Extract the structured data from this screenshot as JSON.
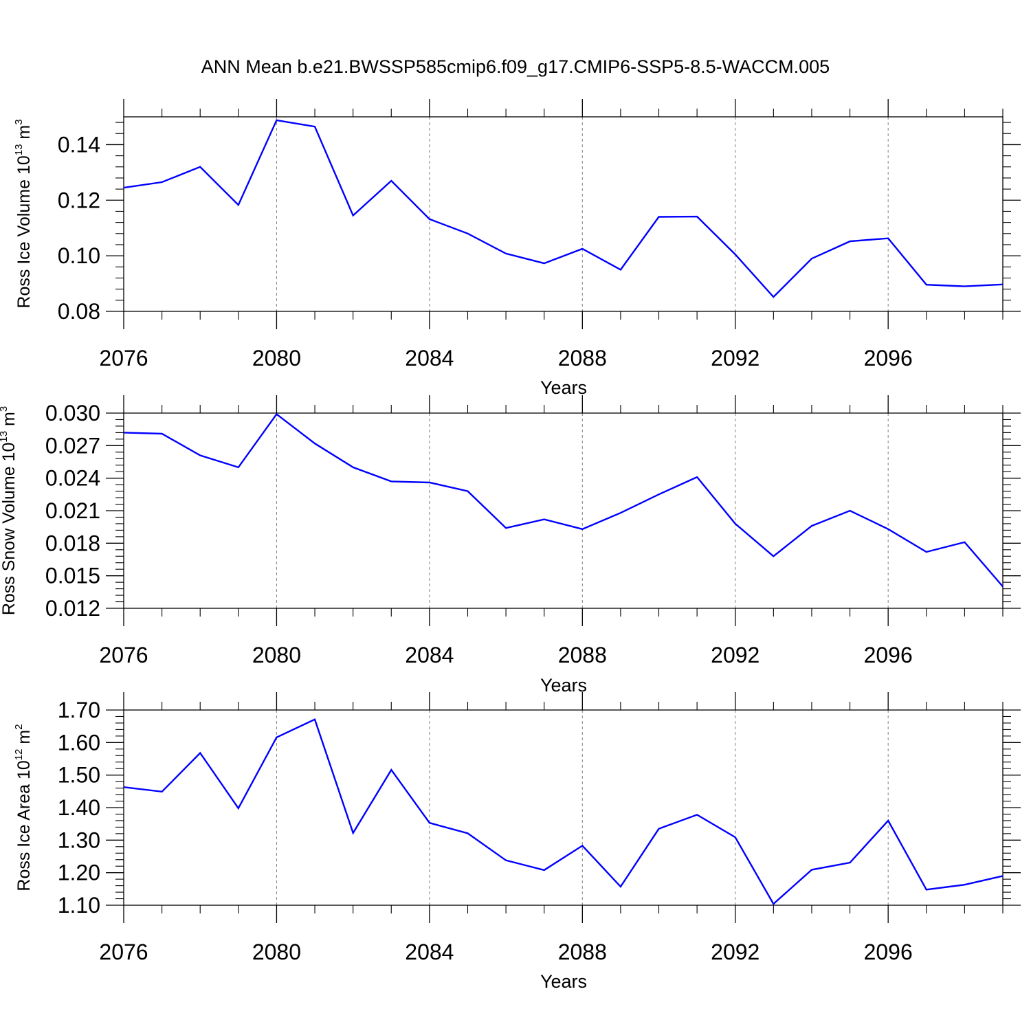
{
  "title": "ANN Mean b.e21.BWSSP585cmip6.f09_g17.CMIP6-SSP5-8.5-WACCM.005",
  "colors": {
    "line": "#0000ff",
    "axis": "#000000",
    "grid": "#808080"
  },
  "chart_data": [
    {
      "type": "line",
      "ylabel": {
        "text": "Ross Ice Volume 10",
        "exp": "13",
        "unit": " m",
        "unit_exp": "3"
      },
      "xlabel": "Years",
      "xlim": [
        2076,
        2099
      ],
      "ylim": [
        0.08,
        0.15
      ],
      "yticks": [
        0.08,
        0.1,
        0.12,
        0.14
      ],
      "ytick_labels": [
        "0.08",
        "0.10",
        "0.12",
        "0.14"
      ],
      "xticks": [
        2076,
        2080,
        2084,
        2088,
        2092,
        2096
      ],
      "xtick_labels": [
        "2076",
        "2080",
        "2084",
        "2088",
        "2092",
        "2096"
      ],
      "grid": "vertical dashed at major x ticks",
      "x": [
        2076,
        2077,
        2078,
        2079,
        2080,
        2081,
        2082,
        2083,
        2084,
        2085,
        2086,
        2087,
        2088,
        2089,
        2090,
        2091,
        2092,
        2093,
        2094,
        2095,
        2096,
        2097,
        2098,
        2099
      ],
      "y": [
        0.1245,
        0.1265,
        0.132,
        0.1183,
        0.1488,
        0.1465,
        0.1145,
        0.127,
        0.1132,
        0.108,
        0.1008,
        0.0973,
        0.1025,
        0.095,
        0.114,
        0.1141,
        0.1005,
        0.0852,
        0.099,
        0.1052,
        0.1063,
        0.0896,
        0.089,
        0.0897
      ]
    },
    {
      "type": "line",
      "ylabel": {
        "text": "Ross Snow Volume 10",
        "exp": "13",
        "unit": " m",
        "unit_exp": "3"
      },
      "xlabel": "Years",
      "xlim": [
        2076,
        2099
      ],
      "ylim": [
        0.012,
        0.03
      ],
      "yticks": [
        0.012,
        0.015,
        0.018,
        0.021,
        0.024,
        0.027,
        0.03
      ],
      "ytick_labels": [
        "0.012",
        "0.015",
        "0.018",
        "0.021",
        "0.024",
        "0.027",
        "0.030"
      ],
      "xticks": [
        2076,
        2080,
        2084,
        2088,
        2092,
        2096
      ],
      "xtick_labels": [
        "2076",
        "2080",
        "2084",
        "2088",
        "2092",
        "2096"
      ],
      "grid": "vertical dashed at major x ticks",
      "x": [
        2076,
        2077,
        2078,
        2079,
        2080,
        2081,
        2082,
        2083,
        2084,
        2085,
        2086,
        2087,
        2088,
        2089,
        2090,
        2091,
        2092,
        2093,
        2094,
        2095,
        2096,
        2097,
        2098,
        2099
      ],
      "y": [
        0.0282,
        0.0281,
        0.0261,
        0.025,
        0.0299,
        0.0272,
        0.025,
        0.0237,
        0.0236,
        0.0228,
        0.0194,
        0.0202,
        0.0193,
        0.0208,
        0.0225,
        0.0241,
        0.0198,
        0.0168,
        0.0196,
        0.021,
        0.0193,
        0.0172,
        0.0181,
        0.014
      ]
    },
    {
      "type": "line",
      "ylabel": {
        "text": "Ross Ice Area 10",
        "exp": "12",
        "unit": " m",
        "unit_exp": "2"
      },
      "xlabel": "Years",
      "xlim": [
        2076,
        2099
      ],
      "ylim": [
        1.1,
        1.7
      ],
      "yticks": [
        1.1,
        1.2,
        1.3,
        1.4,
        1.5,
        1.6,
        1.7
      ],
      "ytick_labels": [
        "1.10",
        "1.20",
        "1.30",
        "1.40",
        "1.50",
        "1.60",
        "1.70"
      ],
      "xticks": [
        2076,
        2080,
        2084,
        2088,
        2092,
        2096
      ],
      "xtick_labels": [
        "2076",
        "2080",
        "2084",
        "2088",
        "2092",
        "2096"
      ],
      "grid": "vertical dashed at major x ticks",
      "x": [
        2076,
        2077,
        2078,
        2079,
        2080,
        2081,
        2082,
        2083,
        2084,
        2085,
        2086,
        2087,
        2088,
        2089,
        2090,
        2091,
        2092,
        2093,
        2094,
        2095,
        2096,
        2097,
        2098,
        2099
      ],
      "y": [
        1.463,
        1.449,
        1.568,
        1.398,
        1.616,
        1.671,
        1.322,
        1.516,
        1.353,
        1.321,
        1.238,
        1.208,
        1.283,
        1.157,
        1.335,
        1.378,
        1.309,
        1.104,
        1.209,
        1.231,
        1.36,
        1.148,
        1.163,
        1.19
      ]
    }
  ]
}
